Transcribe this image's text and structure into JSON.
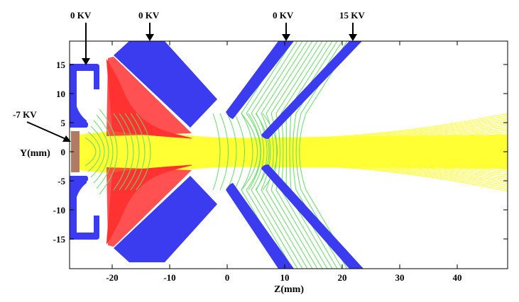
{
  "axes": {
    "x_title": "Z(mm)",
    "y_title": "Y(mm)",
    "x_ticks": [
      "-20",
      "-10",
      "0",
      "10",
      "20",
      "30",
      "40"
    ],
    "y_ticks": [
      "15",
      "10",
      "5",
      "0",
      "-5",
      "-10",
      "-15"
    ]
  },
  "electrodes": [
    {
      "id": "cathode",
      "label": "-7 KV"
    },
    {
      "id": "wehnelt",
      "label": "0 KV"
    },
    {
      "id": "electrode2",
      "label": "0 KV"
    },
    {
      "id": "electrode3",
      "label": "0 KV"
    },
    {
      "id": "electrode4",
      "label": "15 KV"
    }
  ],
  "colors": {
    "electrode": "#3b3bef",
    "cathode": "#b07a63",
    "beam": "#ffff33",
    "scattered_electrons": "#ff3333",
    "equipotential": "#66dd66"
  }
}
